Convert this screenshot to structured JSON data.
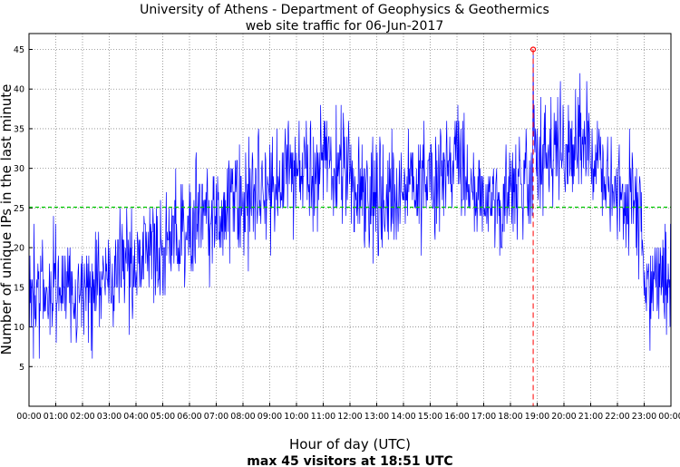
{
  "chart_data": {
    "type": "line",
    "title": "University of Athens - Department of Geophysics & Geothermics",
    "subtitle": "web site traffic for 06-Jun-2017",
    "xlabel": "Hour of day (UTC)",
    "ylabel": "Number of unique IPs in the last minute",
    "footer": "max 45 visitors at 18:51 UTC",
    "x_ticks": [
      "00:00",
      "01:00",
      "02:00",
      "03:00",
      "04:00",
      "05:00",
      "06:00",
      "07:00",
      "08:00",
      "09:00",
      "10:00",
      "11:00",
      "12:00",
      "13:00",
      "14:00",
      "15:00",
      "16:00",
      "17:00",
      "18:00",
      "19:00",
      "20:00",
      "21:00",
      "22:00",
      "23:00",
      "00:00"
    ],
    "y_ticks": [
      5,
      10,
      15,
      20,
      25,
      30,
      35,
      40,
      45
    ],
    "xlim": [
      0,
      24
    ],
    "ylim": [
      0,
      47
    ],
    "grid": true,
    "series_color": "#0000ff",
    "series_profile": {
      "x": [
        0,
        1,
        2,
        3,
        4,
        5,
        6,
        7,
        8,
        9,
        10,
        11,
        12,
        13,
        14,
        15,
        16,
        17,
        18,
        18.5,
        19,
        20,
        21,
        22,
        22.8,
        23,
        24
      ],
      "y": [
        15,
        15,
        14,
        16,
        19,
        22,
        23,
        24,
        26,
        27,
        30,
        30,
        29,
        26,
        27,
        29,
        30,
        26,
        27,
        29,
        31,
        33,
        32,
        27,
        26,
        17,
        16
      ]
    },
    "mean_line": {
      "y": 25.1,
      "color": "#00cc00"
    },
    "max_marker": {
      "x": 18.85,
      "y": 45,
      "color": "#ff0000"
    },
    "colors": {
      "series": "#0000ff",
      "mean": "#00cc00",
      "max": "#ff0000",
      "grid": "#888888"
    }
  }
}
